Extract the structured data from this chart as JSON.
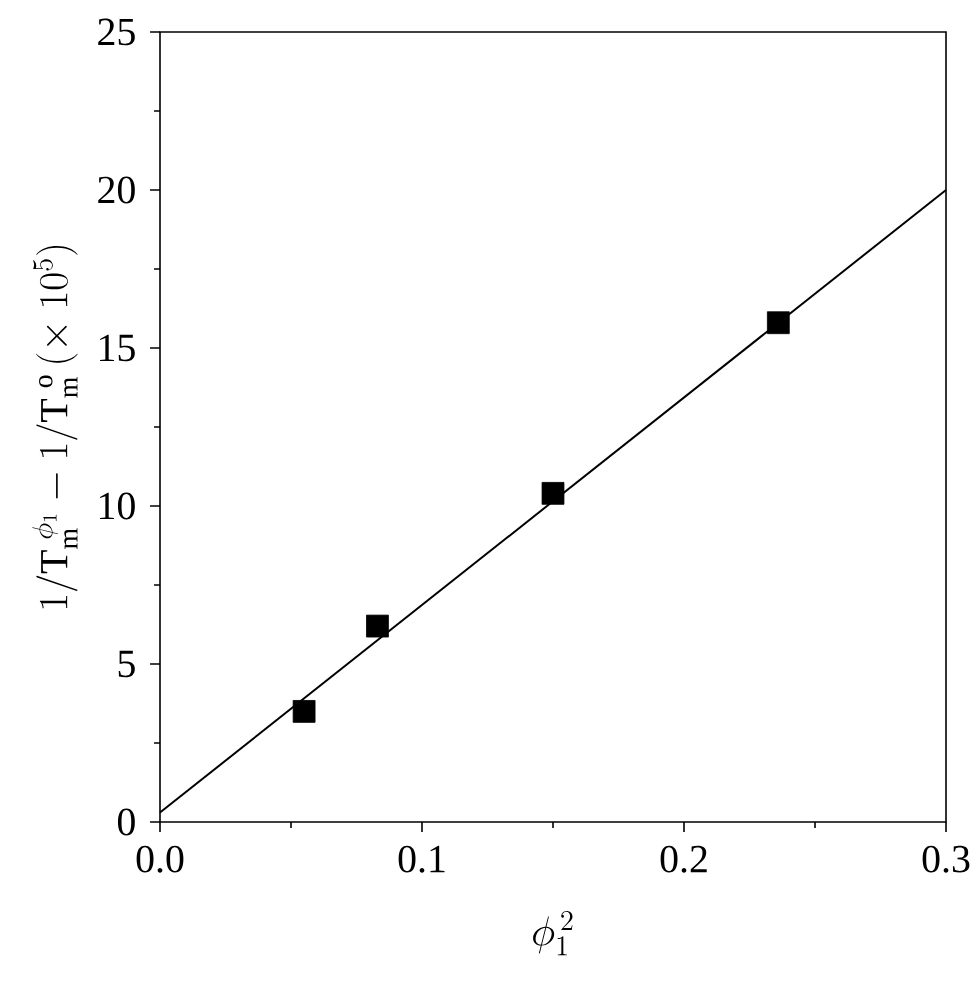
{
  "chart_data": {
    "type": "scatter",
    "xlabel": "\\phi_1^{\\,2}",
    "ylabel": "1/\\mathrm{T}_{\\mathrm{m}}^{\\ \\phi_1} - 1/\\mathrm{T}_{\\mathrm{m}}^{\\ \\mathrm{o}}\\,(\\times\\ 10^{5})",
    "xlim": [
      0.0,
      0.3
    ],
    "ylim": [
      0,
      25
    ],
    "xticks": [
      {
        "value": 0.0,
        "label": "0.0"
      },
      {
        "value": 0.1,
        "label": "0.1"
      },
      {
        "value": 0.2,
        "label": "0.2"
      },
      {
        "value": 0.3,
        "label": "0.3"
      }
    ],
    "yticks": [
      0,
      5,
      10,
      15,
      20,
      25
    ],
    "series": [
      {
        "color": "#000000",
        "marker": "square",
        "x": [
          0.055,
          0.083,
          0.15,
          0.236
        ],
        "values": [
          3.5,
          6.2,
          10.4,
          15.8
        ]
      },
      {
        "type": "line",
        "color": "#000000",
        "marker": "none",
        "line_style": "solid",
        "x": [
          0.0,
          0.3
        ],
        "values": [
          0.3,
          20.0
        ]
      }
    ]
  }
}
